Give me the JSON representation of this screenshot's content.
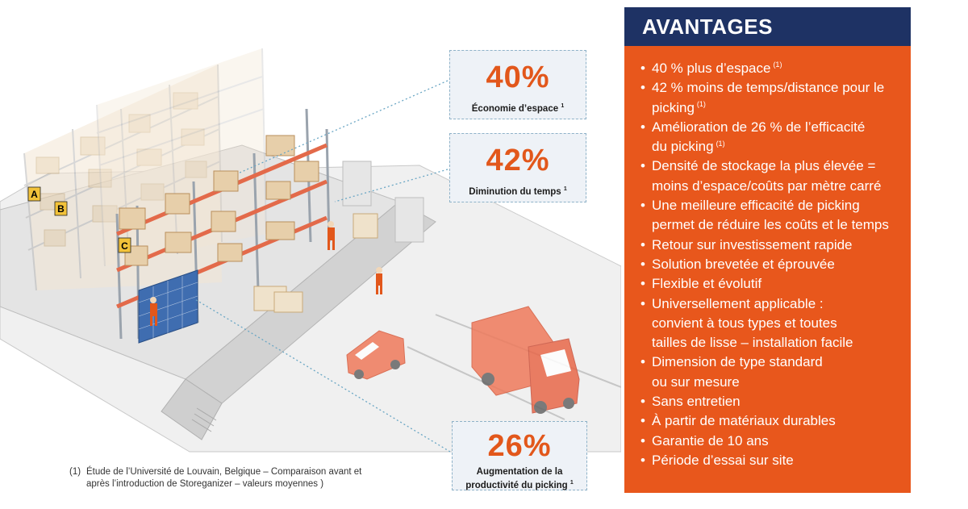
{
  "stats": [
    {
      "value": "40%",
      "label": "Économie d’espace",
      "note": "1"
    },
    {
      "value": "42%",
      "label": "Diminution du temps",
      "note": "1"
    },
    {
      "value": "26%",
      "label_line1": "Augmentation de la",
      "label_line2": "productivité du  picking",
      "note": "1"
    }
  ],
  "footnote": {
    "number": "(1)",
    "text": "Étude de l’Université de Louvain, Belgique – Comparaison avant et après l’introduction de Storeganizer – valeurs moyennes )"
  },
  "panel": {
    "title": "AVANTAGES",
    "items": [
      {
        "text": "40 % plus d’espace",
        "note": "(1)"
      },
      {
        "text": "42 % moins de temps/distance pour le\npicking",
        "note": "(1)"
      },
      {
        "text": "Amélioration de 26 % de l’efficacité\n du picking",
        "note": "(1)"
      },
      {
        "text": "Densité de stockage la plus élevée =\nmoins d’espace/coûts par mètre carré",
        "note": ""
      },
      {
        "text": "Une meilleure efficacité de picking\npermet de réduire les coûts et le temps",
        "note": ""
      },
      {
        "text": "Retour sur investissement rapide",
        "note": ""
      },
      {
        "text": "Solution brevetée et éprouvée",
        "note": ""
      },
      {
        "text": "Flexible et évolutif",
        "note": ""
      },
      {
        "text": "Universellement applicable :\nconvient à tous types et toutes\ntailles de lisse – installation facile",
        "note": ""
      },
      {
        "text": "Dimension de type standard\nou sur mesure",
        "note": ""
      },
      {
        "text": "Sans entretien",
        "note": ""
      },
      {
        "text": "À partir de matériaux durables",
        "note": ""
      },
      {
        "text": "Garantie de 10 ans",
        "note": ""
      },
      {
        "text": "Période d’essai sur site",
        "note": ""
      }
    ]
  },
  "illustration": {
    "rack_labels": [
      "A",
      "B",
      "C"
    ],
    "colors": {
      "accent_orange": "#e2571b",
      "panel_orange": "#e8571c",
      "header_navy": "#1e3264",
      "stat_box_bg": "#eef2f7",
      "rack_red": "#e36a4a",
      "box_tan": "#e7cfaa",
      "floor_grey": "#e4e4e4",
      "storage_blue": "#3f6db0"
    }
  }
}
